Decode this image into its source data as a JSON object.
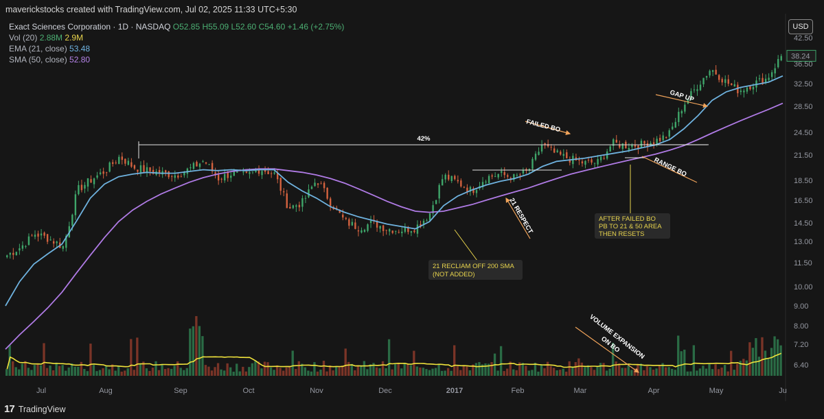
{
  "header": {
    "attribution": "maverickstocks created with TradingView.com, Jul 02, 2025 11:33 UTC+5:30",
    "symbol_line_prefix": "Exact Sciences Corporation · 1D · NASDAQ",
    "open": "O52.85",
    "high": "H55.09",
    "low": "L52.60",
    "close": "C54.60",
    "change": "+1.46 (+2.75%)",
    "vol_label": "Vol (20)",
    "vol_value_1": "2.88M",
    "vol_value_2": "2.9M",
    "ema_label": "EMA (21, close)",
    "ema_value": "53.48",
    "sma_label": "SMA (50, close)",
    "sma_value": "52.80"
  },
  "currency_button": "USD",
  "footer": {
    "logo": "17",
    "brand": "TradingView"
  },
  "colors": {
    "background": "#161616",
    "up": "#3fa66a",
    "down": "#d4623f",
    "ema": "#6fb3e0",
    "sma": "#b07be6",
    "volume_ma": "#f1e43c",
    "annotation_arrow": "#f0a35a",
    "note_text": "#e8d44d"
  },
  "chart_data": {
    "type": "candlestick",
    "scale": "log",
    "y_ticks": [
      "42.50",
      "36.50",
      "32.50",
      "28.50",
      "24.50",
      "21.50",
      "18.50",
      "16.50",
      "14.50",
      "13.00",
      "11.50",
      "10.00",
      "9.00",
      "8.00",
      "7.20",
      "6.40"
    ],
    "x_ticks": [
      "Jul",
      "Aug",
      "Sep",
      "Oct",
      "Nov",
      "Dec",
      "2017",
      "Feb",
      "Mar",
      "Apr",
      "May",
      "Ju"
    ],
    "last_price_label": "38.24",
    "price_path": [
      [
        "Jul",
        12.0
      ],
      [
        "",
        12.6
      ],
      [
        "",
        13.6
      ],
      [
        "",
        13.2
      ],
      [
        "",
        12.6
      ],
      [
        "Aug",
        17.5
      ],
      [
        "",
        18.6
      ],
      [
        "",
        19.6
      ],
      [
        "",
        21.3
      ],
      [
        "",
        20.0
      ],
      [
        "Sep",
        19.6
      ],
      [
        "",
        19.3
      ],
      [
        "",
        19.1
      ],
      [
        "",
        19.8
      ],
      [
        "",
        20.8
      ],
      [
        "Oct",
        18.7
      ],
      [
        "",
        19.3
      ],
      [
        "",
        19.0
      ],
      [
        "",
        19.8
      ],
      [
        "",
        19.2
      ],
      [
        "Nov",
        15.8
      ],
      [
        "",
        16.3
      ],
      [
        "",
        18.6
      ],
      [
        "",
        16.3
      ],
      [
        "",
        14.6
      ],
      [
        "Dec",
        14.1
      ],
      [
        "",
        14.5
      ],
      [
        "",
        14.0
      ],
      [
        "",
        13.9
      ],
      [
        "",
        14.1
      ],
      [
        "2017",
        15.2
      ],
      [
        "",
        19.0
      ],
      [
        "",
        18.3
      ],
      [
        "",
        17.4
      ],
      [
        "",
        18.8
      ],
      [
        "Feb",
        19.2
      ],
      [
        "",
        18.8
      ],
      [
        "",
        19.5
      ],
      [
        "",
        22.8
      ],
      [
        "",
        21.6
      ],
      [
        "Mar",
        21.0
      ],
      [
        "",
        20.5
      ],
      [
        "",
        20.6
      ],
      [
        "",
        23.0
      ],
      [
        "",
        22.7
      ],
      [
        "Apr",
        22.8
      ],
      [
        "",
        23.3
      ],
      [
        "",
        24.1
      ],
      [
        "",
        28.5
      ],
      [
        "",
        32.0
      ],
      [
        "May",
        35.5
      ],
      [
        "",
        33.0
      ],
      [
        "",
        31.2
      ],
      [
        "",
        32.5
      ],
      [
        "",
        33.5
      ],
      [
        "Ju",
        38.2
      ]
    ],
    "ema_21_path": [
      9.0,
      10.3,
      11.4,
      12.1,
      12.8,
      14.6,
      16.7,
      18.1,
      18.9,
      19.2,
      19.4,
      19.3,
      19.3,
      19.5,
      19.7,
      19.6,
      19.7,
      19.6,
      19.7,
      19.7,
      18.3,
      17.4,
      16.7,
      15.9,
      15.4,
      15.0,
      14.7,
      14.4,
      14.2,
      14.0,
      14.6,
      16.0,
      16.9,
      17.5,
      18.0,
      18.4,
      18.7,
      19.2,
      20.1,
      20.7,
      20.9,
      21.1,
      21.4,
      21.7,
      22.0,
      22.4,
      22.8,
      23.5,
      25.0,
      27.0,
      29.5,
      31.0,
      31.8,
      32.3,
      32.8,
      34.0
    ],
    "sma_50_path": [
      7.0,
      7.6,
      8.2,
      8.9,
      9.7,
      10.8,
      12.0,
      13.3,
      14.6,
      15.6,
      16.4,
      17.1,
      17.7,
      18.3,
      18.8,
      19.2,
      19.5,
      19.7,
      19.8,
      19.8,
      19.6,
      19.4,
      19.1,
      18.7,
      18.2,
      17.6,
      17.0,
      16.4,
      15.9,
      15.5,
      15.4,
      15.5,
      15.8,
      16.1,
      16.5,
      16.9,
      17.3,
      17.7,
      18.2,
      18.7,
      19.2,
      19.6,
      20.0,
      20.4,
      20.8,
      21.2,
      21.6,
      22.1,
      22.7,
      23.5,
      24.4,
      25.3,
      26.2,
      27.1,
      28.0,
      29.0
    ],
    "resistance_level": 22.8,
    "range_level": 22.1,
    "range_bo_level": 21.2
  },
  "annotations": {
    "percent_gain": "42%",
    "failed_bo": "FAILED BO",
    "gap_up": "GAP UP",
    "range_bo": "RANGE BO",
    "respect_21": "21 RESPECT",
    "volume_expansion_1": "VOLUME EXPANSION",
    "volume_expansion_2": "ON BO",
    "note_reclaim_1": "21 RECLIAM OFF 200 SMA",
    "note_reclaim_2": "(NOT ADDED)",
    "note_failed_1": "AFTER FAILED BO",
    "note_failed_2": "PB TO 21 & 50 AREA",
    "note_failed_3": "THEN RESETS"
  }
}
